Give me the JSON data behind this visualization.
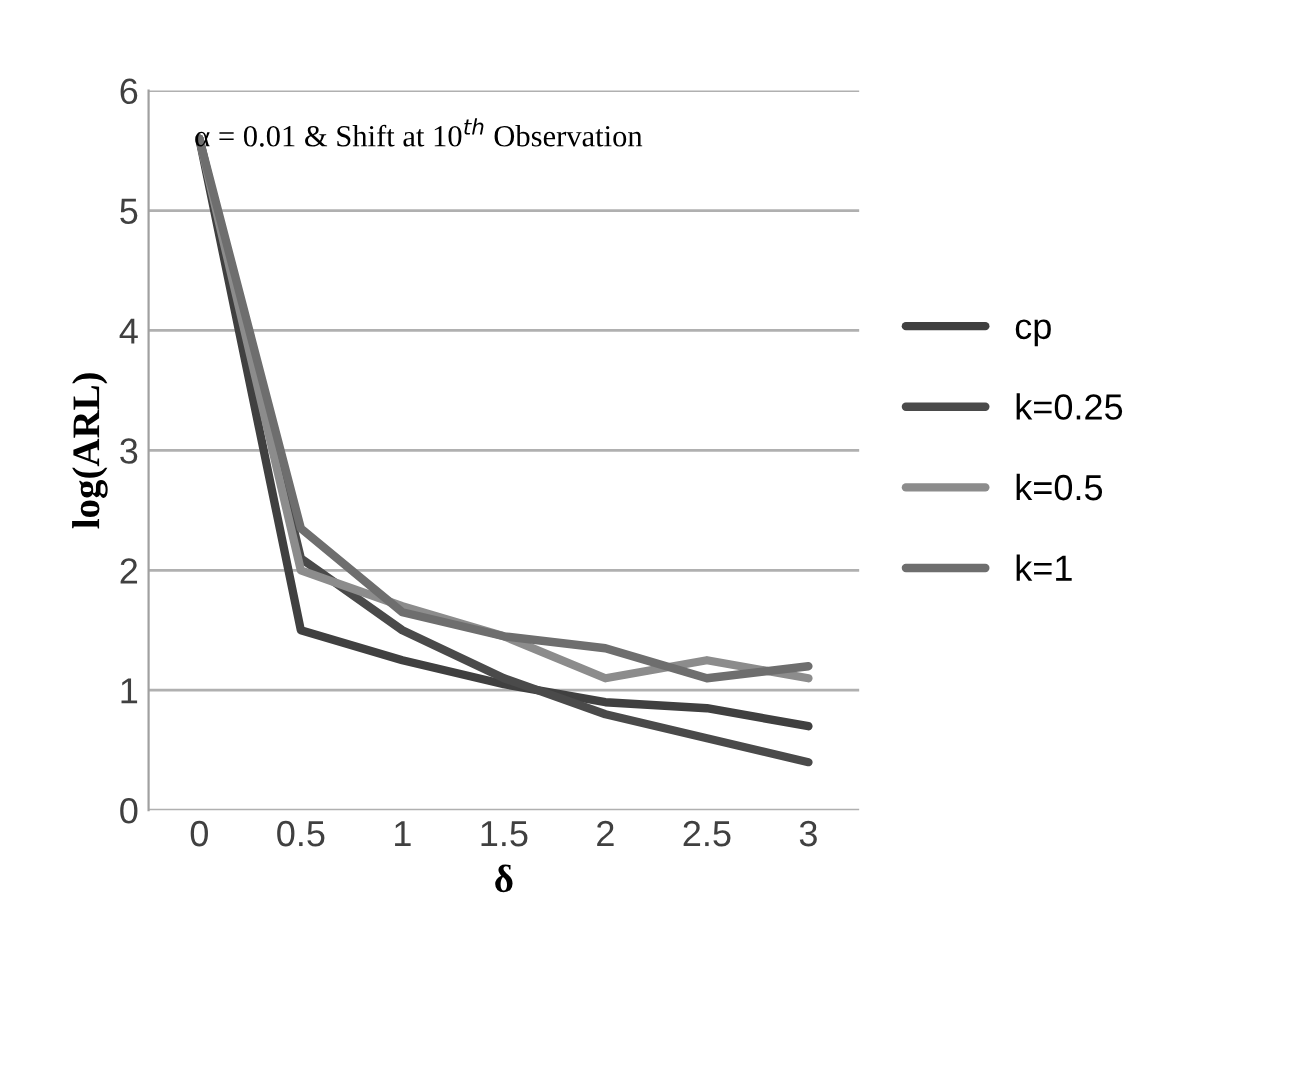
{
  "chart_data": {
    "type": "line",
    "xlabel": "δ",
    "ylabel": "log(ARL)",
    "categories": [
      "0",
      "0.5",
      "1",
      "1.5",
      "2",
      "2.5",
      "3"
    ],
    "series": [
      {
        "name": "cp",
        "color": "#404040",
        "values": [
          5.6,
          1.5,
          1.25,
          1.05,
          0.9,
          0.85,
          0.7
        ]
      },
      {
        "name": "k=0.25",
        "color": "#4a4a4a",
        "values": [
          5.6,
          2.1,
          1.5,
          1.1,
          0.8,
          0.6,
          0.4
        ]
      },
      {
        "name": "k=0.5",
        "color": "#8c8c8c",
        "values": [
          5.6,
          2.0,
          1.7,
          1.45,
          1.1,
          1.25,
          1.1
        ]
      },
      {
        "name": "k=1",
        "color": "#6e6e6e",
        "values": [
          5.6,
          2.35,
          1.65,
          1.45,
          1.35,
          1.1,
          1.2
        ]
      }
    ],
    "ylim": [
      0,
      6
    ],
    "yticks": [
      0,
      1,
      2,
      3,
      4,
      5,
      6
    ],
    "grid": "y",
    "legend": "right",
    "marker": "none",
    "line_style": "solid",
    "annotations": [
      {
        "text": "α = 0.01 & Shift at 10$^{th}$ Observation",
        "x": "0",
        "y": 5.6
      }
    ]
  }
}
